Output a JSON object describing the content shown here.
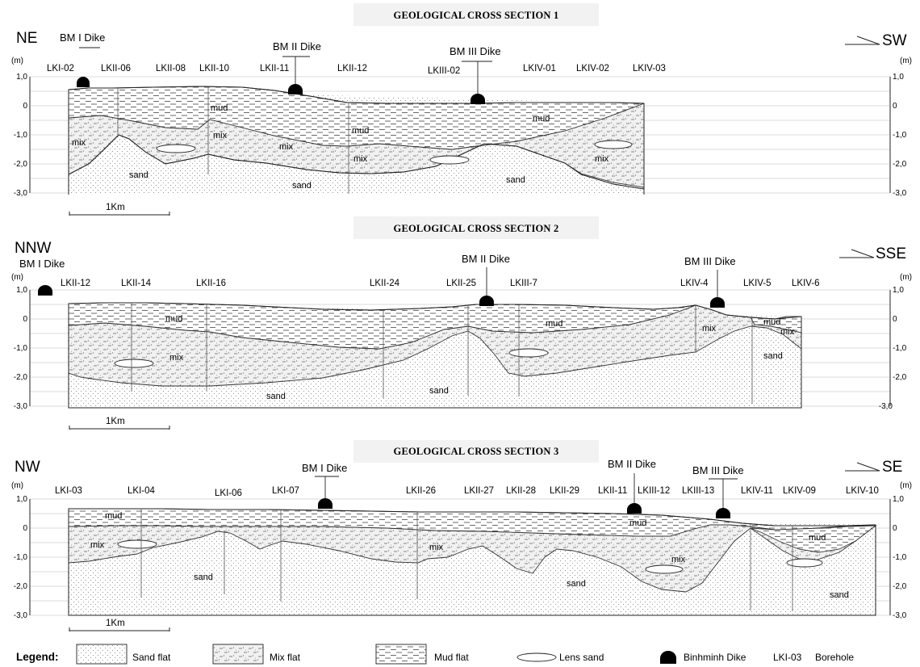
{
  "sections": [
    {
      "title": "GEOLOGICAL CROSS SECTION 1",
      "dir_left": "NE",
      "dir_right": "SW",
      "dikes": [
        "BM I Dike",
        "BM II Dike",
        "BM III Dike"
      ],
      "boreholes": [
        "LKI-02",
        "LKII-06",
        "LKII-08",
        "LKII-10",
        "LKII-11",
        "LKII-12",
        "LKIII-02",
        "LKIV-01",
        "LKIV-02",
        "LKIV-03"
      ],
      "materials": [
        "mud",
        "mud",
        "mud",
        "mix",
        "mix",
        "mix",
        "mix",
        "mix",
        "sand",
        "sand",
        "sand"
      ],
      "scale_label": "1Km"
    },
    {
      "title": "GEOLOGICAL CROSS SECTION 2",
      "dir_left": "NNW",
      "dir_right": "SSE",
      "dikes": [
        "BM I Dike",
        "BM II Dike",
        "BM III Dike"
      ],
      "boreholes": [
        "LKII-12",
        "LKII-14",
        "LKII-16",
        "LKII-24",
        "LKII-25",
        "LKIII-7",
        "LKIV-4",
        "LKIV-5",
        "LKIV-6"
      ],
      "materials": [
        "mud",
        "mud",
        "mud",
        "mix",
        "mix",
        "mix",
        "sand",
        "sand",
        "sand"
      ],
      "scale_label": "1Km"
    },
    {
      "title": "GEOLOGICAL CROSS SECTION 3",
      "dir_left": "NW",
      "dir_right": "SE",
      "dikes": [
        "BM I Dike",
        "BM II Dike",
        "BM III Dike"
      ],
      "boreholes": [
        "LKI-03",
        "LKI-04",
        "LKI-06",
        "LKI-07",
        "LKII-26",
        "LKII-27",
        "LKII-28",
        "LKII-29",
        "LKII-11",
        "LKIII-12",
        "LKIII-13",
        "LKIV-11",
        "LKIV-09",
        "LKIV-10"
      ],
      "materials": [
        "mud",
        "mud",
        "mud",
        "mix",
        "mix",
        "mix",
        "sand",
        "sand",
        "sand"
      ],
      "scale_label": "1Km"
    }
  ],
  "axis": {
    "unit": "(m)",
    "ticks": [
      "1,0",
      "0",
      "-1,0",
      "-2,0",
      "-3,0"
    ]
  },
  "legend": {
    "title": "Legend:",
    "items": [
      "Sand flat",
      "Mix flat",
      "Mud flat",
      "Lens sand",
      "Binhminh Dike"
    ],
    "borehole_code": "LKI-03",
    "borehole_label": "Borehole"
  }
}
